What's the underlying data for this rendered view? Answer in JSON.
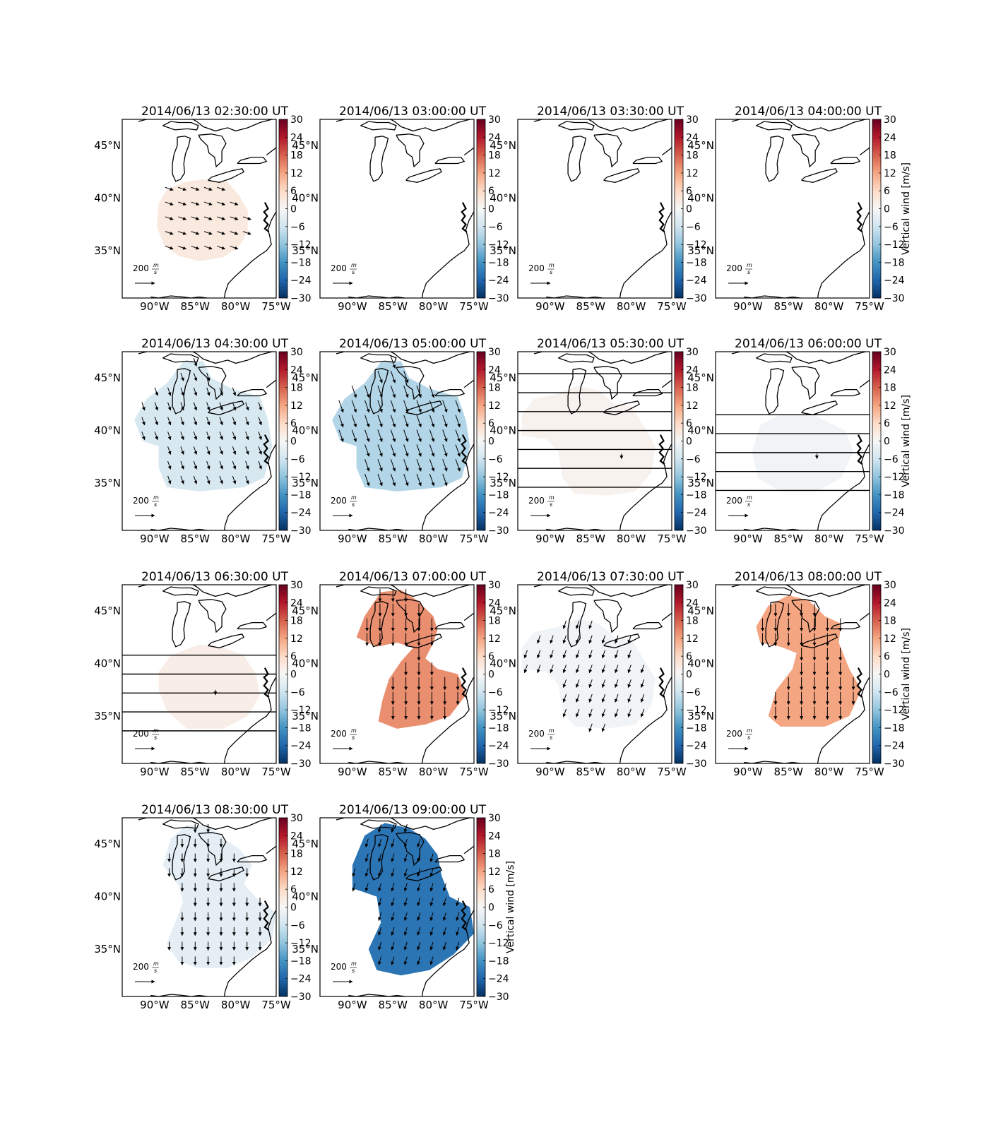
{
  "figure": {
    "colorbar_label": "Vertical wind [m/s]",
    "colorbar_ticks": [
      30,
      24,
      18,
      12,
      6,
      0,
      -6,
      -12,
      -18,
      -24,
      -30
    ],
    "colorbar_range": [
      -30,
      30
    ],
    "lon_ticks": [
      "90°W",
      "85°W",
      "80°W",
      "75°W"
    ],
    "lat_ticks": [
      "45°N",
      "40°N",
      "35°N"
    ],
    "lon_range": [
      -94,
      -75
    ],
    "lat_range": [
      30.5,
      47.5
    ],
    "reference_vector": {
      "label_value": "200",
      "unit_num": "m",
      "unit_den": "s"
    }
  },
  "chart_data": [
    {
      "type": "heatmap",
      "title": "2014/06/13 02:30:00 UT",
      "vertical_wind_ms": 3,
      "arrow_direction": "east-southeast",
      "arrow_count_estimate": 30
    },
    {
      "type": "heatmap",
      "title": "2014/06/13 03:00:00 UT",
      "vertical_wind_ms": null,
      "arrow_direction": null,
      "arrow_count_estimate": 0
    },
    {
      "type": "heatmap",
      "title": "2014/06/13 03:30:00 UT",
      "vertical_wind_ms": null,
      "arrow_direction": null,
      "arrow_count_estimate": 0
    },
    {
      "type": "heatmap",
      "title": "2014/06/13 04:00:00 UT",
      "vertical_wind_ms": null,
      "arrow_direction": null,
      "arrow_count_estimate": 0
    },
    {
      "type": "heatmap",
      "title": "2014/06/13 04:30:00 UT",
      "vertical_wind_ms": -5,
      "arrow_direction": "south-southeast",
      "arrow_count_estimate": 40
    },
    {
      "type": "heatmap",
      "title": "2014/06/13 05:00:00 UT",
      "vertical_wind_ms": -9,
      "arrow_direction": "south-southeast",
      "arrow_count_estimate": 45
    },
    {
      "type": "heatmap",
      "title": "2014/06/13 05:30:00 UT",
      "vertical_wind_ms": 1,
      "arrow_direction": "south",
      "arrow_count_estimate": 1
    },
    {
      "type": "heatmap",
      "title": "2014/06/13 06:00:00 UT",
      "vertical_wind_ms": -1,
      "arrow_direction": "south",
      "arrow_count_estimate": 1
    },
    {
      "type": "heatmap",
      "title": "2014/06/13 06:30:00 UT",
      "vertical_wind_ms": 2,
      "arrow_direction": "south",
      "arrow_count_estimate": 1
    },
    {
      "type": "heatmap",
      "title": "2014/06/13 07:00:00 UT",
      "vertical_wind_ms": 14,
      "arrow_direction": "south",
      "arrow_count_estimate": 60
    },
    {
      "type": "heatmap",
      "title": "2014/06/13 07:30:00 UT",
      "vertical_wind_ms": -1,
      "arrow_direction": "south-southwest",
      "arrow_count_estimate": 50
    },
    {
      "type": "heatmap",
      "title": "2014/06/13 08:00:00 UT",
      "vertical_wind_ms": 12,
      "arrow_direction": "south",
      "arrow_count_estimate": 50
    },
    {
      "type": "heatmap",
      "title": "2014/06/13 08:30:00 UT",
      "vertical_wind_ms": -3,
      "arrow_direction": "south",
      "arrow_count_estimate": 40
    },
    {
      "type": "heatmap",
      "title": "2014/06/13 09:00:00 UT",
      "vertical_wind_ms": -22,
      "arrow_direction": "south-southwest",
      "arrow_count_estimate": 50
    }
  ]
}
